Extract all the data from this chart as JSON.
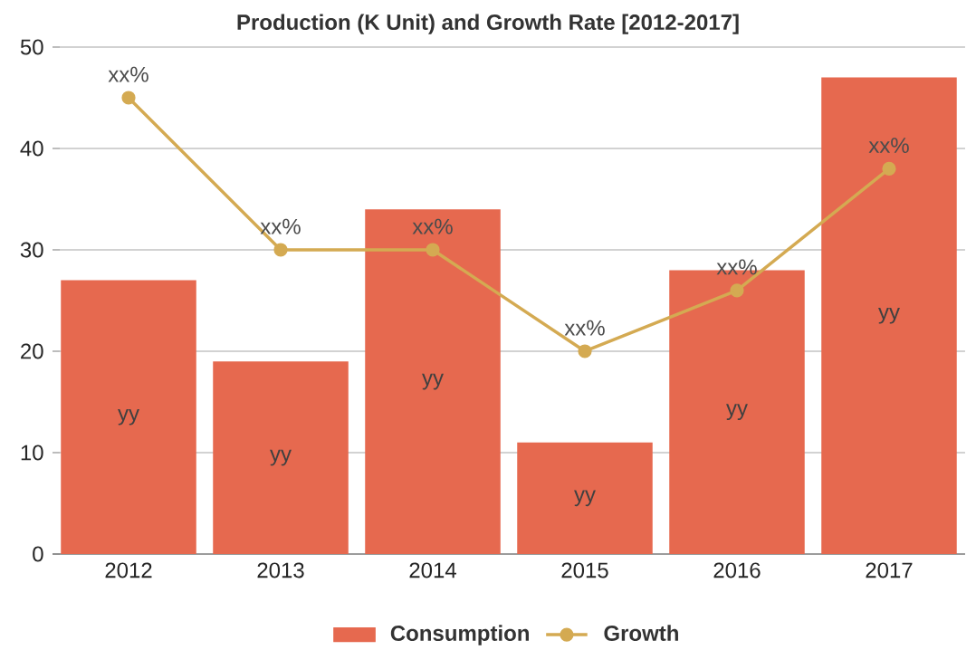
{
  "chart_data": {
    "type": "bar",
    "title": "Production (K Unit) and Growth Rate [2012-2017]",
    "categories": [
      "2012",
      "2013",
      "2014",
      "2015",
      "2016",
      "2017"
    ],
    "series": [
      {
        "name": "Consumption",
        "color": "#e6694f",
        "values": [
          27,
          19,
          34,
          11,
          28,
          47
        ],
        "value_labels": [
          "yy",
          "yy",
          "yy",
          "yy",
          "yy",
          "yy"
        ]
      },
      {
        "name": "Growth",
        "type": "line",
        "color": "#d4aa52",
        "values": [
          45,
          30,
          30,
          20,
          26,
          38
        ],
        "value_labels": [
          "xx%",
          "xx%",
          "xx%",
          "xx%",
          "xx%",
          "xx%"
        ],
        "marker": "circle"
      }
    ],
    "ylim": [
      0,
      50
    ],
    "yticks": [
      0,
      10,
      20,
      30,
      40,
      50
    ],
    "grid": "y",
    "legend": "bottom"
  }
}
